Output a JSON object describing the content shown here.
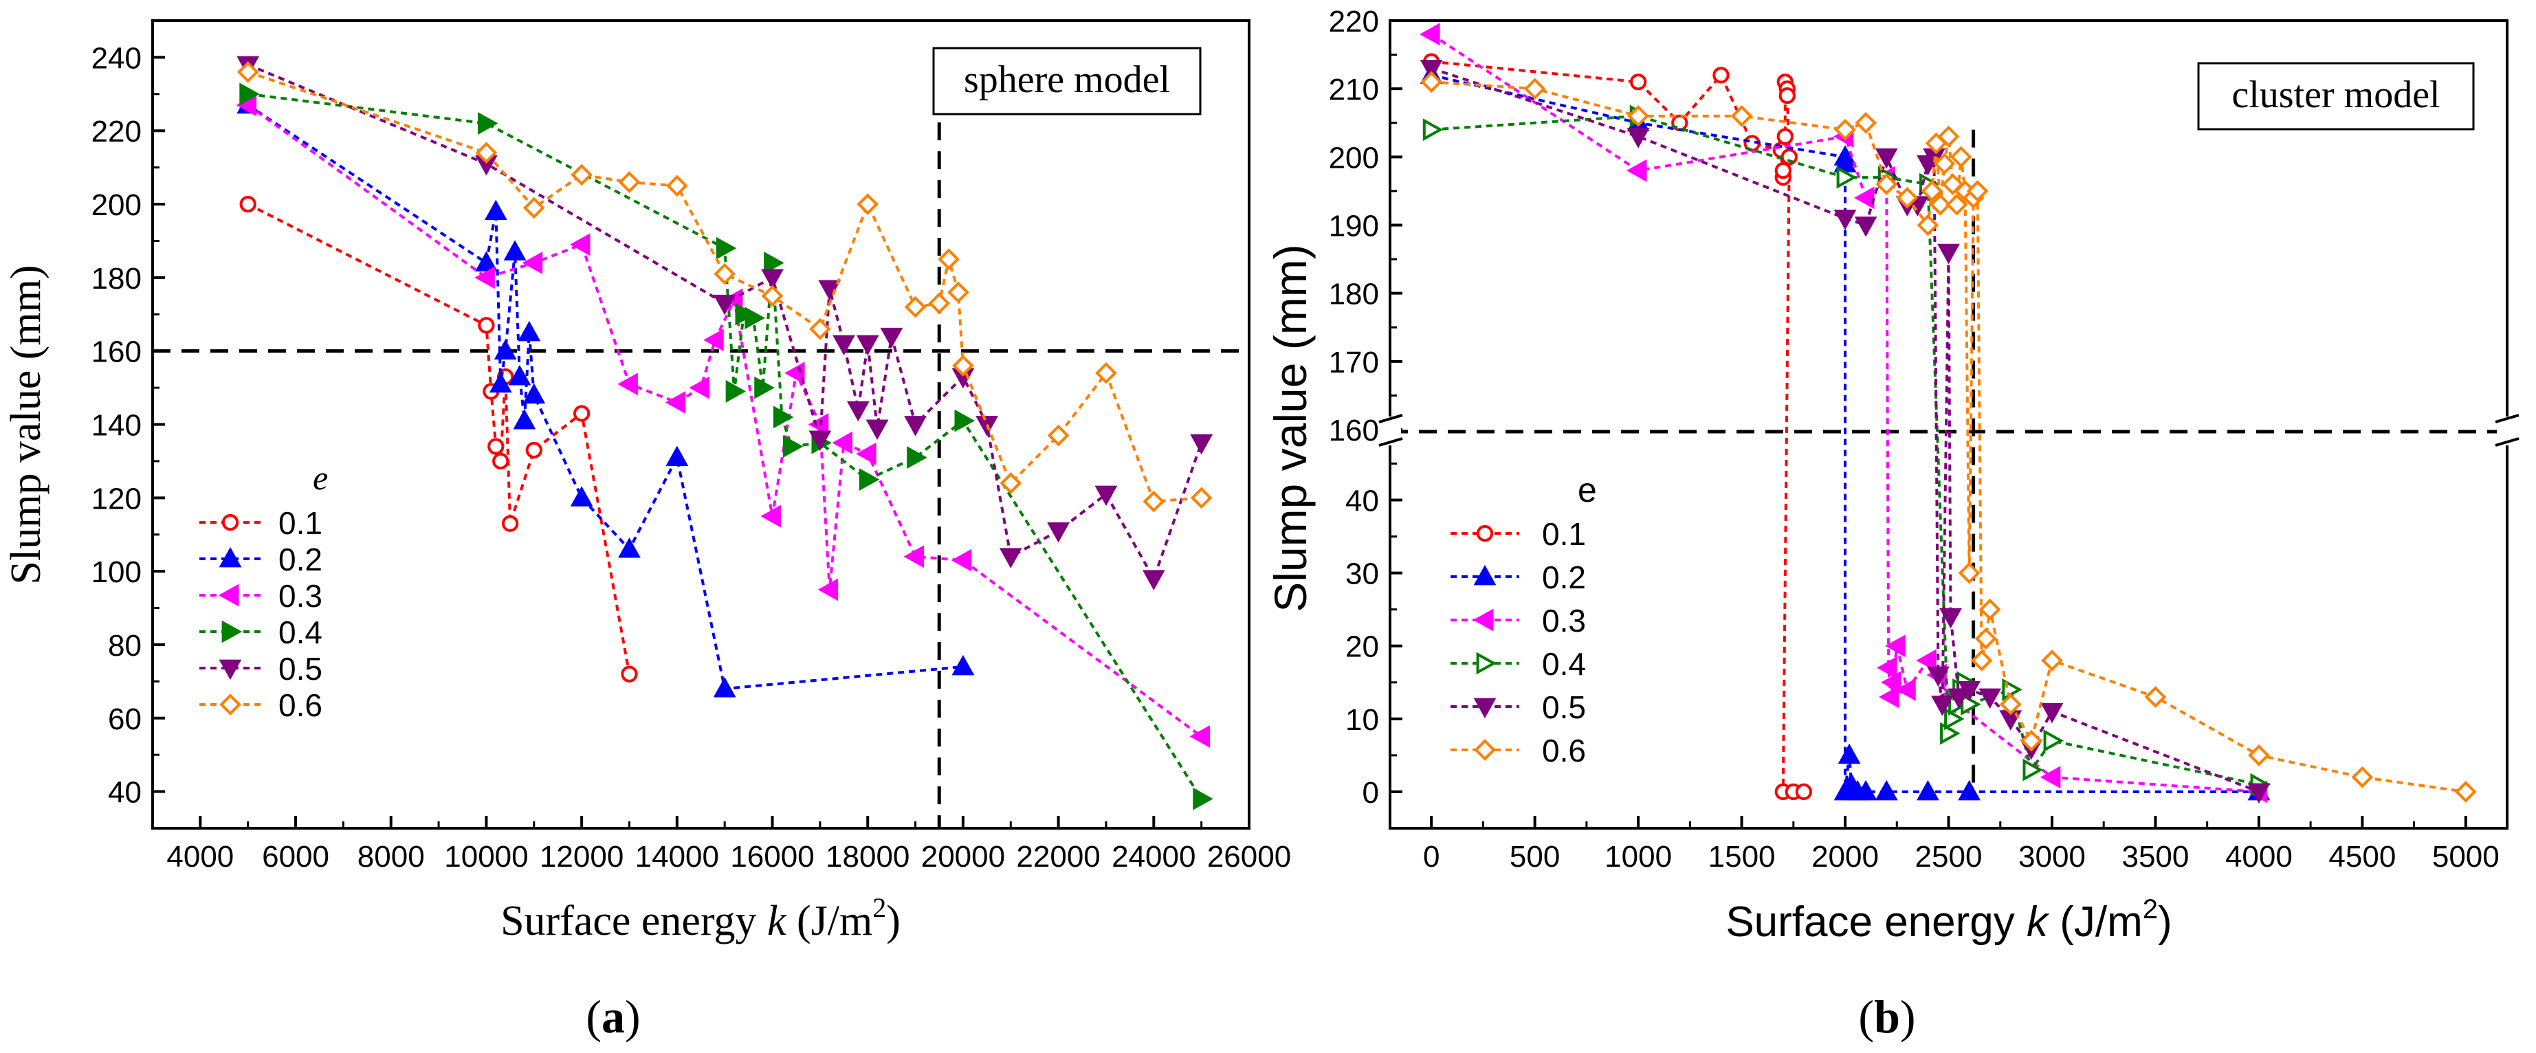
{
  "colors": {
    "0.1": "#ff0000",
    "0.2": "#0000ff",
    "0.3": "#ff00ff",
    "0.4": "#008000",
    "0.5": "#800080",
    "0.6": "#ff8000",
    "axis": "#000000"
  },
  "chart_data": [
    {
      "type": "line",
      "panel_label": "(a)",
      "panel_letter": "a",
      "title": "",
      "annotation": "sphere model",
      "xlabel_prefix": "Surface energy ",
      "xlabel_var": "k",
      "xlabel_unit": " (J/m",
      "xlabel_sup": "2",
      "xlabel_close": ")",
      "ylabel": "Slump value (mm)",
      "xlim": [
        3000,
        26000
      ],
      "ylim": [
        30,
        250
      ],
      "xticks": [
        4000,
        6000,
        8000,
        10000,
        12000,
        14000,
        16000,
        18000,
        20000,
        22000,
        24000,
        26000
      ],
      "xtick_labels": [
        "4000",
        "6000",
        "8000",
        "10000",
        "12000",
        "14000",
        "16000",
        "18000",
        "20000",
        "22000",
        "24000",
        "26000"
      ],
      "yticks": [
        40,
        60,
        80,
        100,
        120,
        140,
        160,
        180,
        200,
        220,
        240
      ],
      "ytick_labels": [
        "40",
        "60",
        "80",
        "100",
        "120",
        "140",
        "160",
        "180",
        "200",
        "220",
        "240"
      ],
      "hline": 160,
      "vline": 19500,
      "legend_title": "e",
      "legend_position": "bottom-left",
      "series": [
        {
          "name": "0.1",
          "marker": "circle",
          "x": [
            5000,
            10000,
            10100,
            10200,
            10300,
            10400,
            10500,
            11000,
            12000,
            13000
          ],
          "y": [
            200,
            167,
            149,
            134,
            130,
            153,
            113,
            133,
            143,
            72
          ]
        },
        {
          "name": "0.2",
          "marker": "triangle-up",
          "x": [
            5000,
            10000,
            10200,
            10300,
            10400,
            10600,
            10700,
            10800,
            10900,
            11000,
            12000,
            13000,
            14000,
            15000,
            20000
          ],
          "y": [
            227,
            184,
            198,
            151,
            160,
            187,
            153,
            141,
            165,
            148,
            120,
            106,
            131,
            68,
            74
          ]
        },
        {
          "name": "0.3",
          "marker": "triangle-left",
          "x": [
            5000,
            10000,
            11000,
            12000,
            13000,
            14000,
            14500,
            14800,
            15200,
            16000,
            16500,
            17000,
            17200,
            17500,
            18000,
            19000,
            20000,
            25000
          ],
          "y": [
            227,
            180,
            184,
            189,
            151,
            146,
            150,
            163,
            174,
            115,
            154,
            140,
            95,
            135,
            132,
            104,
            103,
            55
          ]
        },
        {
          "name": "0.4",
          "marker": "triangle-right",
          "x": [
            5000,
            10000,
            15000,
            15200,
            15400,
            15600,
            15800,
            16000,
            16200,
            16400,
            17000,
            18000,
            19000,
            20000,
            25000
          ],
          "y": [
            230,
            222,
            188,
            149,
            170,
            169,
            150,
            184,
            142,
            134,
            135,
            125,
            131,
            141,
            38
          ]
        },
        {
          "name": "0.5",
          "marker": "triangle-down",
          "x": [
            5000,
            10000,
            15000,
            16000,
            17000,
            17200,
            17500,
            17800,
            18000,
            18200,
            18500,
            19000,
            20000,
            20500,
            21000,
            22000,
            23000,
            24000,
            25000
          ],
          "y": [
            238,
            211,
            173,
            180,
            136,
            177,
            162,
            144,
            162,
            139,
            164,
            140,
            153,
            140,
            104,
            111,
            121,
            98,
            135
          ]
        },
        {
          "name": "0.6",
          "marker": "diamond",
          "x": [
            5000,
            10000,
            11000,
            12000,
            13000,
            14000,
            15000,
            16000,
            17000,
            18000,
            19000,
            19500,
            19700,
            19900,
            20000,
            21000,
            22000,
            23000,
            24000,
            25000
          ],
          "y": [
            236,
            214,
            199,
            208,
            206,
            205,
            181,
            175,
            166,
            200,
            172,
            173,
            185,
            176,
            156,
            124,
            137,
            154,
            119,
            120
          ]
        }
      ]
    },
    {
      "type": "line",
      "panel_label": "(b)",
      "panel_letter": "b",
      "title": "",
      "annotation": "cluster model",
      "xlabel_prefix": "Surface energy ",
      "xlabel_var": "k",
      "xlabel_unit": "  (J/m",
      "xlabel_sup": "2",
      "xlabel_close": ")",
      "ylabel": "Slump value (mm)",
      "xlim": [
        -200,
        5200
      ],
      "ylim_lower": [
        -5,
        49
      ],
      "ylim_upper": [
        155,
        220
      ],
      "axis_break_at": 160,
      "xticks": [
        0,
        500,
        1000,
        1500,
        2000,
        2500,
        3000,
        3500,
        4000,
        4500,
        5000
      ],
      "xtick_labels": [
        "0",
        "500",
        "1000",
        "1500",
        "2000",
        "2500",
        "3000",
        "3500",
        "4000",
        "4500",
        "5000"
      ],
      "yticks_lower": [
        0,
        10,
        20,
        30,
        40
      ],
      "ytick_labels_lower": [
        "0",
        "10",
        "20",
        "30",
        "40"
      ],
      "yticks_upper": [
        160,
        170,
        180,
        190,
        200,
        210,
        220
      ],
      "ytick_labels_upper": [
        "160",
        "170",
        "180",
        "190",
        "200",
        "210",
        "220"
      ],
      "hline": 160,
      "vline": 2620,
      "legend_title": "e",
      "legend_position": "bottom-left",
      "series": [
        {
          "name": "0.1",
          "marker": "circle",
          "x": [
            0,
            1000,
            1200,
            1400,
            1550,
            1690,
            1700,
            1700,
            1710,
            1710,
            1720,
            1720,
            1730,
            1700,
            1750,
            1800
          ],
          "y": [
            214,
            211,
            205,
            212,
            202,
            201,
            197,
            198,
            203,
            211,
            210,
            209,
            200,
            0,
            0,
            0
          ]
        },
        {
          "name": "0.2",
          "marker": "triangle-up",
          "x": [
            0,
            1000,
            2000,
            2000,
            2000,
            2020,
            2030,
            2060,
            2100,
            2200,
            2400,
            2600,
            4000
          ],
          "y": [
            212,
            205,
            200,
            199,
            0,
            5,
            1,
            0,
            0,
            0,
            0,
            0,
            0
          ]
        },
        {
          "name": "0.3",
          "marker": "triangle-left",
          "x": [
            0,
            1000,
            2000,
            2100,
            2200,
            2210,
            2220,
            2230,
            2250,
            2300,
            2400,
            2450,
            2500,
            3000,
            4000
          ],
          "y": [
            218,
            198,
            203,
            194,
            197,
            17,
            13,
            15,
            20,
            14,
            18,
            16,
            13,
            2,
            0
          ]
        },
        {
          "name": "0.4",
          "marker": "triangle-right",
          "x": [
            0,
            1000,
            2000,
            2200,
            2400,
            2500,
            2520,
            2540,
            2560,
            2580,
            2600,
            2800,
            2900,
            3000,
            4000
          ],
          "y": [
            204,
            206,
            197,
            197,
            196,
            8,
            10,
            12,
            14,
            15,
            12,
            14,
            3,
            7,
            1
          ]
        },
        {
          "name": "0.5",
          "marker": "triangle-down",
          "x": [
            0,
            1000,
            2000,
            2100,
            2200,
            2300,
            2350,
            2400,
            2430,
            2450,
            2470,
            2500,
            2510,
            2550,
            2600,
            2700,
            2800,
            2900,
            3000,
            4000
          ],
          "y": [
            213,
            203,
            191,
            190,
            200,
            193,
            193,
            199,
            200,
            16,
            12,
            186,
            24,
            13,
            14,
            13,
            10,
            6,
            11,
            0
          ]
        },
        {
          "name": "0.6",
          "marker": "diamond",
          "x": [
            0,
            500,
            1000,
            1500,
            2000,
            2100,
            2200,
            2300,
            2400,
            2420,
            2440,
            2460,
            2480,
            2500,
            2520,
            2540,
            2560,
            2580,
            2600,
            2620,
            2640,
            2660,
            2680,
            2700,
            2800,
            2900,
            3000,
            3500,
            4000,
            4500,
            5000
          ],
          "y": [
            211,
            210,
            206,
            206,
            204,
            205,
            196,
            194,
            190,
            195,
            202,
            193,
            199,
            203,
            196,
            193,
            200,
            195,
            30,
            194,
            195,
            18,
            21,
            25,
            12,
            7,
            18,
            13,
            5,
            2,
            0
          ]
        }
      ]
    }
  ]
}
